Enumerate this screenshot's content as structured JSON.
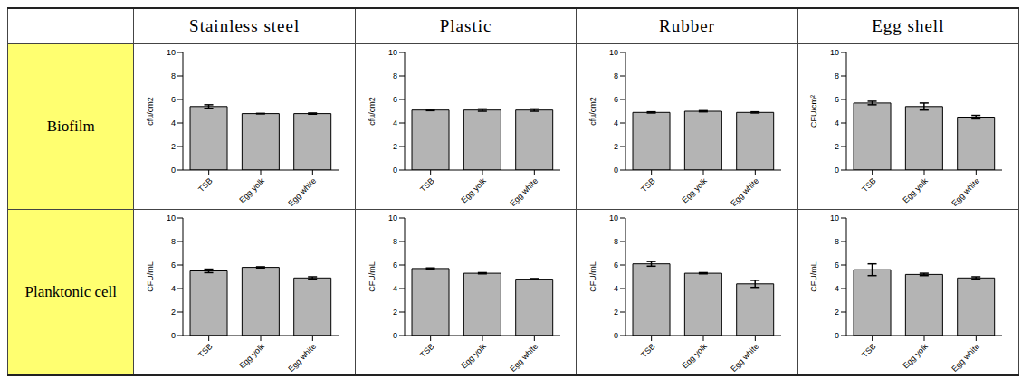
{
  "table": {
    "columns": [
      "Stainless steel",
      "Plastic",
      "Rubber",
      "Egg shell"
    ],
    "rows": [
      "Biofilm",
      "Planktonic cell"
    ]
  },
  "chart_data": [
    {
      "type": "bar",
      "y_label": "cfu/cm2",
      "categories": [
        "TSB",
        "Egg yolk",
        "Egg white"
      ],
      "values": [
        5.4,
        4.8,
        4.8
      ],
      "errors": [
        0.15,
        0.02,
        0.05
      ],
      "color": "#b4b4b4",
      "ylim": [
        0,
        10
      ],
      "yticks": [
        0,
        2,
        4,
        6,
        8,
        10
      ]
    },
    {
      "type": "bar",
      "y_label": "cfu/cm2",
      "categories": [
        "TSB",
        "Egg yolk",
        "Egg white"
      ],
      "values": [
        5.1,
        5.1,
        5.1
      ],
      "errors": [
        0.05,
        0.1,
        0.1
      ],
      "color": "#b4b4b4",
      "ylim": [
        0,
        10
      ],
      "yticks": [
        0,
        2,
        4,
        6,
        8,
        10
      ]
    },
    {
      "type": "bar",
      "y_label": "cfu/cm2",
      "categories": [
        "TSB",
        "Egg yolk",
        "Egg white"
      ],
      "values": [
        4.9,
        5.0,
        4.9
      ],
      "errors": [
        0.05,
        0.05,
        0.05
      ],
      "color": "#b4b4b4",
      "ylim": [
        0,
        10
      ],
      "yticks": [
        0,
        2,
        4,
        6,
        8,
        10
      ]
    },
    {
      "type": "bar",
      "y_label": "CFU/cm²",
      "categories": [
        "TSB",
        "Egg yolk",
        "Egg white"
      ],
      "values": [
        5.7,
        5.4,
        4.5
      ],
      "errors": [
        0.15,
        0.3,
        0.15
      ],
      "color": "#b4b4b4",
      "ylim": [
        0,
        10
      ],
      "yticks": [
        0,
        2,
        4,
        6,
        8,
        10
      ]
    },
    {
      "type": "bar",
      "y_label": "CFU/mL",
      "categories": [
        "TSB",
        "Egg yolk",
        "Egg white"
      ],
      "values": [
        5.5,
        5.8,
        4.9
      ],
      "errors": [
        0.15,
        0.05,
        0.1
      ],
      "color": "#b4b4b4",
      "ylim": [
        0,
        10
      ],
      "yticks": [
        0,
        2,
        4,
        6,
        8,
        10
      ]
    },
    {
      "type": "bar",
      "y_label": "CFU/mL",
      "categories": [
        "TSB",
        "Egg yolk",
        "Egg white"
      ],
      "values": [
        5.7,
        5.3,
        4.8
      ],
      "errors": [
        0.05,
        0.05,
        0.05
      ],
      "color": "#b4b4b4",
      "ylim": [
        0,
        10
      ],
      "yticks": [
        0,
        2,
        4,
        6,
        8,
        10
      ]
    },
    {
      "type": "bar",
      "y_label": "CFU/mL",
      "categories": [
        "TSB",
        "Egg yolk",
        "Egg white"
      ],
      "values": [
        6.1,
        5.3,
        4.4
      ],
      "errors": [
        0.2,
        0.05,
        0.3
      ],
      "color": "#b4b4b4",
      "ylim": [
        0,
        10
      ],
      "yticks": [
        0,
        2,
        4,
        6,
        8,
        10
      ]
    },
    {
      "type": "bar",
      "y_label": "CFU/mL",
      "categories": [
        "TSB",
        "Egg yolk",
        "Egg white"
      ],
      "values": [
        5.6,
        5.2,
        4.9
      ],
      "errors": [
        0.5,
        0.1,
        0.1
      ],
      "color": "#b4b4b4",
      "ylim": [
        0,
        10
      ],
      "yticks": [
        0,
        2,
        4,
        6,
        8,
        10
      ]
    }
  ]
}
